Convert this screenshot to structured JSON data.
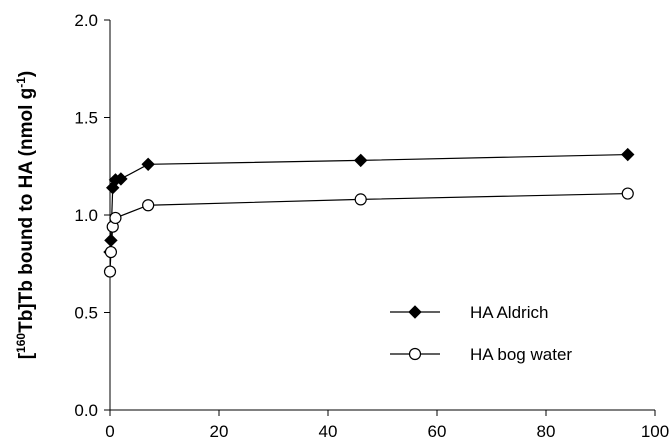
{
  "chart_data": {
    "type": "line",
    "ylabel_parts": [
      "[",
      "160",
      "Tb]Tb bound to HA (nmol g",
      "-1",
      ")"
    ],
    "xlim": [
      0,
      100
    ],
    "xticks": [
      0,
      20,
      40,
      60,
      80,
      100
    ],
    "ylim": [
      0,
      2.0
    ],
    "yticks": [
      {
        "value": 0,
        "label": "0.0"
      },
      {
        "value": 0.5,
        "label": "0.5"
      },
      {
        "value": 1.0,
        "label": "1.0"
      },
      {
        "value": 1.5,
        "label": "1.5"
      },
      {
        "value": 2.0,
        "label": "2.0"
      }
    ],
    "legend": "lower right",
    "series": [
      {
        "name": "HA Aldrich",
        "color": "#000000",
        "marker": "diamond",
        "x": [
          0,
          0.17,
          0.5,
          1,
          2,
          7,
          46,
          95
        ],
        "values": [
          0.81,
          0.87,
          1.14,
          1.18,
          1.185,
          1.26,
          1.28,
          1.31
        ]
      },
      {
        "name": "HA bog water",
        "color": "#000000",
        "marker": "circle",
        "x": [
          0,
          0.17,
          0.5,
          1,
          7,
          46,
          95
        ],
        "values": [
          0.71,
          0.81,
          0.94,
          0.985,
          1.05,
          1.08,
          1.11
        ]
      }
    ]
  }
}
